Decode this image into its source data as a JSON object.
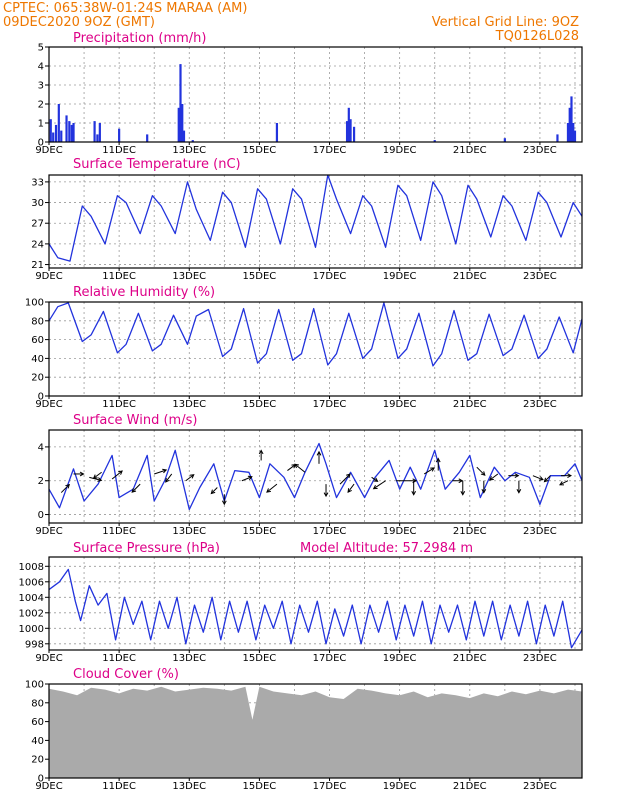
{
  "header": {
    "line1_left": "CPTEC:   065:38W-01:24S   MARAA (AM)",
    "line2_left": "09DEC2020 9OZ (GMT)",
    "line1_right": "Vertical Grid Line: 9OZ",
    "line2_right": "TQ0126L028"
  },
  "colors": {
    "header": "#ee7700",
    "title": "#dd0088",
    "series": "#2233dd",
    "cloud": "#aaaaaa",
    "arrow": "#000000"
  },
  "x_axis": {
    "labels": [
      "9DEC",
      "11DEC",
      "13DEC",
      "15DEC",
      "17DEC",
      "19DEC",
      "21DEC",
      "23DEC"
    ],
    "start_day": 9,
    "end_day": 24.2
  },
  "chart_data": [
    {
      "id": "precip",
      "type": "bar",
      "title": "Precipitation (mm/h)",
      "ylim": [
        0,
        5
      ],
      "yticks": [
        0,
        1,
        2,
        3,
        4,
        5
      ],
      "x": [
        9.05,
        9.12,
        9.2,
        9.28,
        9.35,
        9.5,
        9.58,
        9.65,
        9.7,
        10.3,
        10.38,
        10.45,
        11.0,
        11.8,
        12.7,
        12.75,
        12.8,
        12.85,
        13.1,
        15.5,
        17.5,
        17.55,
        17.6,
        17.7,
        20.0,
        22.0,
        23.5,
        23.8,
        23.85,
        23.9,
        23.95,
        24.0
      ],
      "values": [
        1.2,
        0.5,
        0.9,
        2.0,
        0.6,
        1.4,
        1.1,
        0.9,
        1.0,
        1.1,
        0.4,
        1.0,
        0.7,
        0.4,
        1.8,
        4.1,
        2.0,
        0.6,
        0.1,
        1.0,
        1.1,
        1.8,
        1.2,
        0.8,
        0.1,
        0.2,
        0.4,
        1.0,
        1.8,
        2.4,
        1.0,
        0.6
      ]
    },
    {
      "id": "temp",
      "type": "line",
      "title": "Surface Temperature (nC)",
      "ylim": [
        20.5,
        34
      ],
      "yticks": [
        21,
        24,
        27,
        30,
        33
      ],
      "x": [
        9.0,
        9.25,
        9.6,
        9.95,
        10.2,
        10.6,
        10.95,
        11.2,
        11.6,
        11.95,
        12.2,
        12.6,
        12.95,
        13.2,
        13.6,
        13.95,
        14.2,
        14.6,
        14.95,
        15.2,
        15.6,
        15.95,
        16.2,
        16.6,
        16.95,
        17.2,
        17.6,
        17.95,
        18.2,
        18.6,
        18.95,
        19.2,
        19.6,
        19.95,
        20.2,
        20.6,
        20.95,
        21.2,
        21.6,
        21.95,
        22.2,
        22.6,
        22.95,
        23.2,
        23.6,
        23.95,
        24.2
      ],
      "values": [
        24.0,
        22.0,
        21.5,
        29.5,
        28.0,
        24.0,
        31.0,
        30.0,
        25.5,
        31.0,
        29.5,
        25.5,
        33.0,
        29.0,
        24.5,
        31.5,
        30.0,
        23.5,
        32.0,
        30.5,
        24.0,
        32.0,
        30.5,
        23.5,
        34.0,
        30.5,
        25.5,
        31.0,
        29.5,
        23.5,
        32.5,
        31.0,
        24.5,
        33.0,
        31.0,
        24.0,
        32.5,
        30.5,
        25.0,
        31.0,
        29.5,
        24.5,
        31.5,
        30.0,
        25.0,
        30.0,
        28.0
      ]
    },
    {
      "id": "rh",
      "type": "line",
      "title": "Relative Humidity (%)",
      "ylim": [
        0,
        100
      ],
      "yticks": [
        0,
        20,
        40,
        60,
        80,
        100
      ],
      "x": [
        9.0,
        9.25,
        9.55,
        9.95,
        10.2,
        10.55,
        10.95,
        11.2,
        11.55,
        11.95,
        12.2,
        12.55,
        12.95,
        13.2,
        13.55,
        13.95,
        14.2,
        14.55,
        14.95,
        15.2,
        15.55,
        15.95,
        16.2,
        16.55,
        16.95,
        17.2,
        17.55,
        17.95,
        18.2,
        18.55,
        18.95,
        19.2,
        19.55,
        19.95,
        20.2,
        20.55,
        20.95,
        21.2,
        21.55,
        21.95,
        22.2,
        22.55,
        22.95,
        23.2,
        23.55,
        23.95,
        24.2
      ],
      "values": [
        80,
        95,
        99,
        58,
        65,
        90,
        46,
        55,
        88,
        48,
        55,
        86,
        55,
        85,
        92,
        42,
        50,
        93,
        35,
        45,
        92,
        38,
        45,
        93,
        33,
        45,
        88,
        40,
        50,
        99,
        40,
        50,
        88,
        32,
        45,
        91,
        38,
        45,
        87,
        43,
        50,
        86,
        40,
        50,
        84,
        46,
        82
      ]
    },
    {
      "id": "wind",
      "type": "line",
      "title": "Surface Wind (m/s)",
      "ylim": [
        -0.5,
        5
      ],
      "yticks": [
        0,
        2,
        4
      ],
      "x": [
        9.0,
        9.3,
        9.7,
        10.0,
        10.4,
        10.8,
        11.0,
        11.4,
        11.8,
        12.0,
        12.3,
        12.6,
        13.0,
        13.3,
        13.7,
        14.0,
        14.3,
        14.7,
        15.0,
        15.3,
        15.7,
        16.0,
        16.3,
        16.7,
        16.9,
        17.2,
        17.6,
        18.0,
        18.3,
        18.7,
        19.0,
        19.3,
        19.6,
        20.0,
        20.3,
        20.7,
        21.0,
        21.3,
        21.7,
        22.0,
        22.3,
        22.7,
        23.0,
        23.3,
        23.7,
        24.0,
        24.2
      ],
      "values": [
        1.5,
        0.4,
        2.7,
        0.8,
        1.8,
        3.5,
        1.0,
        1.5,
        3.5,
        0.8,
        2.0,
        3.8,
        0.3,
        1.6,
        3.0,
        0.8,
        2.6,
        2.5,
        1.0,
        3.0,
        2.2,
        1.0,
        2.5,
        4.2,
        3.0,
        1.0,
        2.5,
        1.0,
        2.2,
        3.2,
        1.5,
        2.8,
        1.5,
        3.8,
        1.5,
        2.5,
        3.5,
        1.0,
        2.8,
        2.0,
        2.5,
        2.2,
        0.6,
        2.3,
        2.3,
        3.0,
        2.0
      ],
      "arrows": [
        {
          "x": 9.35,
          "y": 1.3,
          "dx": 8,
          "dy": -8
        },
        {
          "x": 9.7,
          "y": 2.4,
          "dx": 10,
          "dy": 0
        },
        {
          "x": 10.15,
          "y": 2.2,
          "dx": 12,
          "dy": 3
        },
        {
          "x": 10.5,
          "y": 2.5,
          "dx": -8,
          "dy": 6
        },
        {
          "x": 10.8,
          "y": 2.1,
          "dx": 10,
          "dy": -8
        },
        {
          "x": 11.6,
          "y": 1.8,
          "dx": -8,
          "dy": 8
        },
        {
          "x": 12.0,
          "y": 2.4,
          "dx": 12,
          "dy": -4
        },
        {
          "x": 12.5,
          "y": 2.4,
          "dx": -6,
          "dy": 8
        },
        {
          "x": 12.9,
          "y": 2.0,
          "dx": 8,
          "dy": -6
        },
        {
          "x": 13.8,
          "y": 1.6,
          "dx": -6,
          "dy": 6
        },
        {
          "x": 14.0,
          "y": 1.2,
          "dx": 0,
          "dy": 10
        },
        {
          "x": 14.5,
          "y": 2.0,
          "dx": 10,
          "dy": -4
        },
        {
          "x": 15.05,
          "y": 3.2,
          "dx": 0,
          "dy": -10
        },
        {
          "x": 15.5,
          "y": 1.8,
          "dx": -10,
          "dy": 8
        },
        {
          "x": 15.8,
          "y": 2.6,
          "dx": 8,
          "dy": -6
        },
        {
          "x": 16.3,
          "y": 2.5,
          "dx": -10,
          "dy": -8
        },
        {
          "x": 16.7,
          "y": 3.0,
          "dx": 0,
          "dy": -12
        },
        {
          "x": 16.9,
          "y": 1.8,
          "dx": 0,
          "dy": 12
        },
        {
          "x": 17.3,
          "y": 1.8,
          "dx": 10,
          "dy": -10
        },
        {
          "x": 17.7,
          "y": 1.8,
          "dx": -6,
          "dy": 8
        },
        {
          "x": 18.2,
          "y": 2.2,
          "dx": 6,
          "dy": 4
        },
        {
          "x": 18.6,
          "y": 2.0,
          "dx": -12,
          "dy": 8
        },
        {
          "x": 18.9,
          "y": 2.0,
          "dx": 20,
          "dy": 0
        },
        {
          "x": 19.4,
          "y": 2.0,
          "dx": 0,
          "dy": 14
        },
        {
          "x": 19.7,
          "y": 2.4,
          "dx": 10,
          "dy": -6
        },
        {
          "x": 20.1,
          "y": 2.6,
          "dx": 0,
          "dy": -12
        },
        {
          "x": 20.5,
          "y": 2.0,
          "dx": 10,
          "dy": 0
        },
        {
          "x": 20.8,
          "y": 2.0,
          "dx": 0,
          "dy": 14
        },
        {
          "x": 21.2,
          "y": 2.8,
          "dx": 8,
          "dy": 8
        },
        {
          "x": 21.4,
          "y": 2.0,
          "dx": 0,
          "dy": 12
        },
        {
          "x": 21.8,
          "y": 2.4,
          "dx": -8,
          "dy": 6
        },
        {
          "x": 22.1,
          "y": 2.3,
          "dx": 10,
          "dy": 0
        },
        {
          "x": 22.4,
          "y": 2.0,
          "dx": 0,
          "dy": 12
        },
        {
          "x": 22.8,
          "y": 2.3,
          "dx": 10,
          "dy": 4
        },
        {
          "x": 23.3,
          "y": 2.3,
          "dx": -6,
          "dy": 6
        },
        {
          "x": 23.6,
          "y": 2.3,
          "dx": 10,
          "dy": 0
        },
        {
          "x": 23.8,
          "y": 2.0,
          "dx": -8,
          "dy": 4
        }
      ]
    },
    {
      "id": "pressure",
      "type": "line",
      "title": "Surface Pressure (hPa)",
      "subtitle": "Model Altitude: 57.2984 m",
      "ylim": [
        997.2,
        1009.2
      ],
      "yticks": [
        998,
        1000,
        1002,
        1004,
        1006,
        1008
      ],
      "x": [
        9.0,
        9.3,
        9.55,
        9.75,
        9.9,
        10.15,
        10.4,
        10.65,
        10.9,
        11.15,
        11.4,
        11.65,
        11.9,
        12.15,
        12.4,
        12.65,
        12.9,
        13.15,
        13.4,
        13.65,
        13.9,
        14.15,
        14.4,
        14.65,
        14.9,
        15.15,
        15.4,
        15.65,
        15.9,
        16.15,
        16.4,
        16.65,
        16.9,
        17.15,
        17.4,
        17.65,
        17.9,
        18.15,
        18.4,
        18.65,
        18.9,
        19.15,
        19.4,
        19.65,
        19.9,
        20.15,
        20.4,
        20.65,
        20.9,
        21.15,
        21.4,
        21.65,
        21.9,
        22.15,
        22.4,
        22.65,
        22.9,
        23.15,
        23.4,
        23.65,
        23.9,
        24.2
      ],
      "values": [
        1005.0,
        1006.0,
        1007.6,
        1003.5,
        1001.0,
        1005.5,
        1003.0,
        1004.5,
        998.5,
        1004.0,
        1000.5,
        1003.5,
        998.5,
        1003.5,
        1000.0,
        1004.0,
        998.0,
        1003.0,
        999.5,
        1004.0,
        998.5,
        1003.5,
        999.5,
        1003.5,
        998.5,
        1003.0,
        1000.0,
        1003.5,
        998.0,
        1003.0,
        999.5,
        1003.5,
        998.0,
        1002.5,
        999.0,
        1003.0,
        998.0,
        1003.0,
        999.5,
        1003.5,
        998.5,
        1003.0,
        999.0,
        1003.5,
        998.0,
        1003.0,
        999.5,
        1003.0,
        998.5,
        1003.5,
        999.0,
        1003.5,
        998.5,
        1003.0,
        999.0,
        1003.5,
        998.0,
        1003.0,
        999.0,
        1003.5,
        997.5,
        999.8
      ]
    },
    {
      "id": "cloud",
      "type": "area",
      "title": "Cloud Cover (%)",
      "ylim": [
        0,
        100
      ],
      "yticks": [
        0,
        20,
        40,
        60,
        80,
        100
      ],
      "x": [
        9.0,
        9.4,
        9.8,
        10.2,
        10.6,
        11.0,
        11.4,
        11.8,
        12.2,
        12.6,
        13.0,
        13.4,
        13.8,
        14.2,
        14.6,
        14.8,
        15.0,
        15.4,
        15.8,
        16.2,
        16.6,
        17.0,
        17.4,
        17.8,
        18.2,
        18.6,
        19.0,
        19.4,
        19.8,
        20.2,
        20.6,
        21.0,
        21.4,
        21.8,
        22.2,
        22.6,
        23.0,
        23.4,
        23.8,
        24.2
      ],
      "values": [
        95,
        92,
        88,
        96,
        94,
        90,
        95,
        93,
        97,
        92,
        94,
        96,
        95,
        93,
        97,
        62,
        97,
        92,
        90,
        88,
        92,
        86,
        84,
        95,
        93,
        90,
        88,
        92,
        86,
        90,
        88,
        85,
        90,
        87,
        92,
        89,
        93,
        90,
        94,
        92
      ]
    }
  ]
}
